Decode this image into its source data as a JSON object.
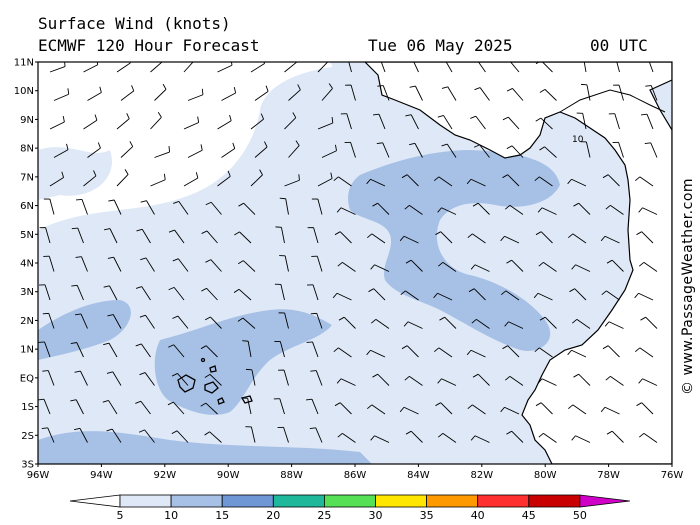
{
  "header": {
    "title": "Surface Wind (knots)",
    "model": "ECMWF 120 Hour Forecast",
    "date": "Tue 06 May 2025",
    "time": "00 UTC"
  },
  "credit": "© www.PassageWeather.com",
  "map": {
    "lat_range": [
      -3,
      11
    ],
    "lon_range": [
      -96,
      -76
    ],
    "lat_labels": [
      "11N",
      "10N",
      "9N",
      "8N",
      "7N",
      "6N",
      "5N",
      "4N",
      "3N",
      "2N",
      "1N",
      "EQ",
      "1S",
      "2S",
      "3S"
    ],
    "lon_labels": [
      "96W",
      "94W",
      "92W",
      "90W",
      "88W",
      "86W",
      "84W",
      "82W",
      "80W",
      "78W",
      "76W"
    ],
    "island_label": "10",
    "land_color": "#ffffff",
    "coast_color": "#000000"
  },
  "scale": {
    "labels": [
      "5",
      "10",
      "15",
      "20",
      "25",
      "30",
      "35",
      "40",
      "45",
      "50"
    ],
    "colors": [
      "#dfe8f7",
      "#a7c1e6",
      "#6f97d6",
      "#1fb89a",
      "#55e055",
      "#ffe600",
      "#ff9900",
      "#ff3030",
      "#c80000",
      "#d000c8"
    ]
  }
}
